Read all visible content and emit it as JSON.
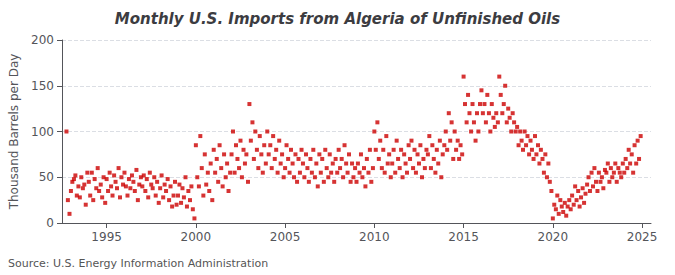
{
  "chart_data": {
    "type": "scatter",
    "title": "Monthly U.S. Imports from Algeria of Unfinished Oils",
    "ylabel": "Thousand Barrels per Day",
    "annotations": [
      "Source: U.S. Energy Information Administration"
    ],
    "color": "#cc0000",
    "marker": "square",
    "grid": true,
    "xlim": [
      1992.5,
      2025.5
    ],
    "xticks": [
      1995,
      2000,
      2005,
      2010,
      2015,
      2020,
      2025
    ],
    "ylim": [
      0,
      200
    ],
    "yticks": [
      0,
      50,
      100,
      150,
      200
    ],
    "x": [
      1992.75,
      1992.83,
      1992.92,
      1993.0,
      1993.08,
      1993.17,
      1993.25,
      1993.33,
      1993.42,
      1993.5,
      1993.58,
      1993.67,
      1993.75,
      1993.83,
      1993.92,
      1994.0,
      1994.08,
      1994.17,
      1994.25,
      1994.33,
      1994.42,
      1994.5,
      1994.58,
      1994.67,
      1994.75,
      1994.83,
      1994.92,
      1995.0,
      1995.08,
      1995.17,
      1995.25,
      1995.33,
      1995.42,
      1995.5,
      1995.58,
      1995.67,
      1995.75,
      1995.83,
      1995.92,
      1996.0,
      1996.08,
      1996.17,
      1996.25,
      1996.33,
      1996.42,
      1996.5,
      1996.58,
      1996.67,
      1996.75,
      1996.83,
      1996.92,
      1997.0,
      1997.08,
      1997.17,
      1997.25,
      1997.33,
      1997.42,
      1997.5,
      1997.58,
      1997.67,
      1997.75,
      1997.83,
      1997.92,
      1998.0,
      1998.08,
      1998.17,
      1998.25,
      1998.33,
      1998.42,
      1998.5,
      1998.58,
      1998.67,
      1998.75,
      1998.83,
      1998.92,
      1999.0,
      1999.08,
      1999.17,
      1999.25,
      1999.33,
      1999.42,
      1999.5,
      1999.58,
      1999.67,
      1999.75,
      1999.83,
      1999.92,
      2000.0,
      2000.08,
      2000.17,
      2000.25,
      2000.33,
      2000.42,
      2000.5,
      2000.58,
      2000.67,
      2000.75,
      2000.83,
      2000.92,
      2001.0,
      2001.08,
      2001.17,
      2001.25,
      2001.33,
      2001.42,
      2001.5,
      2001.58,
      2001.67,
      2001.75,
      2001.83,
      2001.92,
      2002.0,
      2002.08,
      2002.17,
      2002.25,
      2002.33,
      2002.42,
      2002.5,
      2002.58,
      2002.67,
      2002.75,
      2002.83,
      2002.92,
      2003.0,
      2003.08,
      2003.17,
      2003.25,
      2003.33,
      2003.42,
      2003.5,
      2003.58,
      2003.67,
      2003.75,
      2003.83,
      2003.92,
      2004.0,
      2004.08,
      2004.17,
      2004.25,
      2004.33,
      2004.42,
      2004.5,
      2004.58,
      2004.67,
      2004.75,
      2004.83,
      2004.92,
      2005.0,
      2005.08,
      2005.17,
      2005.25,
      2005.33,
      2005.42,
      2005.5,
      2005.58,
      2005.67,
      2005.75,
      2005.83,
      2005.92,
      2006.0,
      2006.08,
      2006.17,
      2006.25,
      2006.33,
      2006.42,
      2006.5,
      2006.58,
      2006.67,
      2006.75,
      2006.83,
      2006.92,
      2007.0,
      2007.08,
      2007.17,
      2007.25,
      2007.33,
      2007.42,
      2007.5,
      2007.58,
      2007.67,
      2007.75,
      2007.83,
      2007.92,
      2008.0,
      2008.08,
      2008.17,
      2008.25,
      2008.33,
      2008.42,
      2008.5,
      2008.58,
      2008.67,
      2008.75,
      2008.83,
      2008.92,
      2009.0,
      2009.08,
      2009.17,
      2009.25,
      2009.33,
      2009.42,
      2009.5,
      2009.58,
      2009.67,
      2009.75,
      2009.83,
      2009.92,
      2010.0,
      2010.08,
      2010.17,
      2010.25,
      2010.33,
      2010.42,
      2010.5,
      2010.58,
      2010.67,
      2010.75,
      2010.83,
      2010.92,
      2011.0,
      2011.08,
      2011.17,
      2011.25,
      2011.33,
      2011.42,
      2011.5,
      2011.58,
      2011.67,
      2011.75,
      2011.83,
      2011.92,
      2012.0,
      2012.08,
      2012.17,
      2012.25,
      2012.33,
      2012.42,
      2012.5,
      2012.58,
      2012.67,
      2012.75,
      2012.83,
      2012.92,
      2013.0,
      2013.08,
      2013.17,
      2013.25,
      2013.33,
      2013.42,
      2013.5,
      2013.58,
      2013.67,
      2013.75,
      2013.83,
      2013.92,
      2014.0,
      2014.08,
      2014.17,
      2014.25,
      2014.33,
      2014.42,
      2014.5,
      2014.58,
      2014.67,
      2014.75,
      2014.83,
      2014.92,
      2015.0,
      2015.08,
      2015.17,
      2015.25,
      2015.33,
      2015.42,
      2015.5,
      2015.58,
      2015.67,
      2015.75,
      2015.83,
      2015.92,
      2016.0,
      2016.08,
      2016.17,
      2016.25,
      2016.33,
      2016.42,
      2016.5,
      2016.58,
      2016.67,
      2016.75,
      2016.83,
      2016.92,
      2017.0,
      2017.08,
      2017.17,
      2017.25,
      2017.33,
      2017.42,
      2017.5,
      2017.58,
      2017.67,
      2017.75,
      2017.83,
      2017.92,
      2018.0,
      2018.08,
      2018.17,
      2018.25,
      2018.33,
      2018.42,
      2018.5,
      2018.58,
      2018.67,
      2018.75,
      2018.83,
      2018.92,
      2019.0,
      2019.08,
      2019.17,
      2019.25,
      2019.33,
      2019.42,
      2019.5,
      2019.58,
      2019.67,
      2019.75,
      2019.83,
      2019.92,
      2020.0,
      2020.08,
      2020.17,
      2020.25,
      2020.33,
      2020.42,
      2020.5,
      2020.58,
      2020.67,
      2020.75,
      2020.83,
      2020.92,
      2021.0,
      2021.08,
      2021.17,
      2021.25,
      2021.33,
      2021.42,
      2021.5,
      2021.58,
      2021.67,
      2021.75,
      2021.83,
      2021.92,
      2022.0,
      2022.08,
      2022.17,
      2022.25,
      2022.33,
      2022.42,
      2022.5,
      2022.58,
      2022.67,
      2022.75,
      2022.83,
      2022.92,
      2023.0,
      2023.08,
      2023.17,
      2023.25,
      2023.33,
      2023.42,
      2023.5,
      2023.58,
      2023.67,
      2023.75,
      2023.83,
      2023.92,
      2024.0,
      2024.08,
      2024.17,
      2024.25,
      2024.33,
      2024.42,
      2024.5,
      2024.58,
      2024.67,
      2024.75,
      2024.83,
      2024.92
    ],
    "values": [
      100,
      25,
      10,
      35,
      45,
      48,
      52,
      30,
      40,
      28,
      50,
      38,
      42,
      20,
      55,
      45,
      30,
      55,
      25,
      48,
      38,
      60,
      35,
      42,
      28,
      50,
      22,
      48,
      35,
      55,
      40,
      30,
      52,
      45,
      38,
      60,
      28,
      50,
      42,
      55,
      40,
      30,
      48,
      38,
      52,
      45,
      35,
      58,
      25,
      42,
      50,
      40,
      52,
      35,
      48,
      28,
      55,
      42,
      38,
      50,
      30,
      45,
      22,
      38,
      52,
      28,
      42,
      35,
      48,
      25,
      40,
      18,
      30,
      45,
      20,
      30,
      42,
      22,
      38,
      28,
      50,
      18,
      35,
      25,
      40,
      15,
      5,
      85,
      50,
      40,
      95,
      60,
      30,
      75,
      42,
      55,
      35,
      65,
      25,
      80,
      55,
      70,
      45,
      85,
      60,
      40,
      75,
      50,
      65,
      35,
      55,
      75,
      100,
      55,
      85,
      70,
      60,
      90,
      50,
      80,
      65,
      75,
      45,
      130,
      90,
      110,
      70,
      100,
      80,
      60,
      95,
      75,
      55,
      85,
      65,
      100,
      75,
      85,
      60,
      95,
      70,
      80,
      55,
      90,
      65,
      75,
      50,
      60,
      85,
      70,
      55,
      80,
      65,
      50,
      75,
      45,
      70,
      55,
      80,
      65,
      50,
      75,
      60,
      45,
      70,
      55,
      80,
      50,
      65,
      40,
      75,
      55,
      70,
      45,
      80,
      60,
      50,
      75,
      55,
      65,
      45,
      70,
      55,
      80,
      60,
      70,
      50,
      85,
      65,
      55,
      75,
      45,
      65,
      50,
      60,
      45,
      65,
      55,
      75,
      50,
      60,
      40,
      70,
      55,
      80,
      45,
      60,
      100,
      80,
      110,
      70,
      90,
      60,
      80,
      55,
      95,
      65,
      75,
      50,
      65,
      80,
      55,
      90,
      70,
      60,
      80,
      50,
      75,
      65,
      55,
      85,
      70,
      90,
      60,
      80,
      55,
      75,
      65,
      85,
      50,
      70,
      60,
      80,
      75,
      95,
      60,
      85,
      70,
      55,
      80,
      65,
      90,
      50,
      75,
      85,
      100,
      80,
      120,
      90,
      110,
      70,
      100,
      80,
      90,
      70,
      85,
      75,
      160,
      130,
      110,
      140,
      120,
      100,
      130,
      110,
      90,
      120,
      100,
      130,
      145,
      120,
      130,
      110,
      140,
      120,
      100,
      130,
      115,
      105,
      120,
      110,
      160,
      140,
      120,
      130,
      150,
      110,
      125,
      115,
      100,
      120,
      110,
      100,
      105,
      85,
      100,
      90,
      80,
      100,
      85,
      95,
      75,
      90,
      80,
      70,
      95,
      75,
      85,
      65,
      80,
      70,
      55,
      75,
      50,
      65,
      45,
      35,
      5,
      20,
      15,
      30,
      10,
      25,
      18,
      12,
      22,
      8,
      18,
      25,
      15,
      30,
      20,
      40,
      25,
      35,
      18,
      28,
      38,
      22,
      32,
      42,
      50,
      35,
      55,
      40,
      60,
      45,
      35,
      55,
      45,
      50,
      38,
      58,
      55,
      65,
      45,
      60,
      50,
      55,
      65,
      45,
      60,
      55,
      50,
      65,
      55,
      70,
      60,
      80,
      65,
      75,
      55,
      85,
      65,
      90,
      70,
      95
    ]
  }
}
